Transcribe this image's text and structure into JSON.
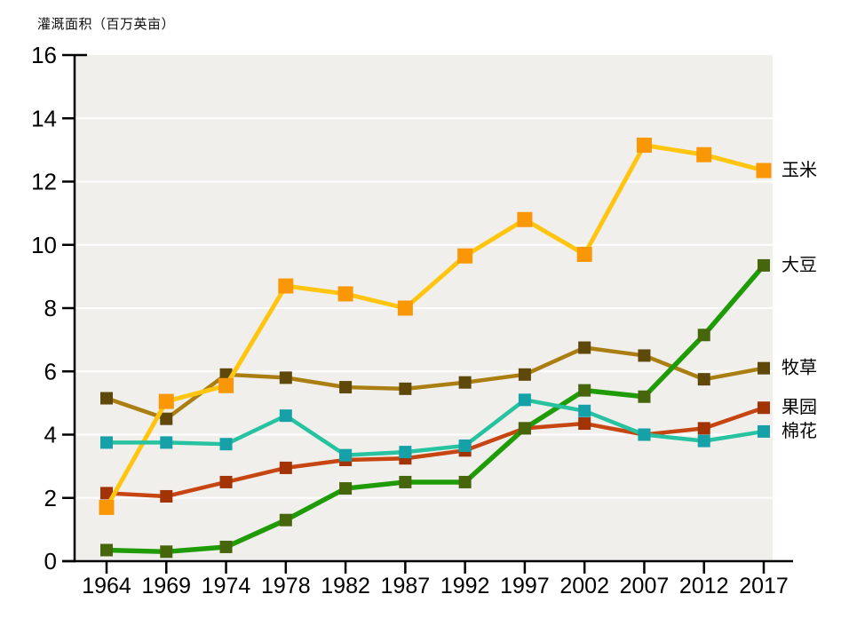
{
  "chart_data": {
    "type": "line",
    "title": "灌溉面积（百万英亩）",
    "xlabel": "",
    "ylabel": "灌溉面积（百万英亩）",
    "x": [
      1964,
      1969,
      1974,
      1978,
      1982,
      1987,
      1992,
      1997,
      2002,
      2007,
      2012,
      2017
    ],
    "ylim": [
      0,
      16
    ],
    "y_ticks": [
      0,
      2,
      4,
      6,
      8,
      10,
      12,
      14,
      16
    ],
    "grid": "horizontal-white-lines-on-gray-panel",
    "panel_color": "#f0efec",
    "gridline_color": "#ffffff",
    "axis_color": "#000000",
    "legend_position": "right-of-line-ends",
    "series": [
      {
        "key": "hay",
        "name": "牧草",
        "line_color": "#ab7e12",
        "marker_color": "#5e490b",
        "values": [
          5.15,
          4.5,
          5.9,
          5.8,
          5.5,
          5.45,
          5.65,
          5.9,
          6.75,
          6.5,
          5.75,
          6.1
        ]
      },
      {
        "key": "orchard",
        "name": "果园",
        "line_color": "#c64511",
        "marker_color": "#a23305",
        "values": [
          2.15,
          2.05,
          2.5,
          2.95,
          3.2,
          3.25,
          3.5,
          4.2,
          4.35,
          4.0,
          4.2,
          4.85
        ]
      },
      {
        "key": "corn",
        "name": "玉米",
        "line_color": "#ffc511",
        "marker_color": "#f99706",
        "values": [
          1.7,
          5.05,
          5.55,
          8.7,
          8.45,
          8.0,
          9.65,
          10.8,
          9.7,
          13.15,
          12.85,
          12.35
        ]
      },
      {
        "key": "soybeans",
        "name": "大豆",
        "line_color": "#1e9b05",
        "marker_color": "#47660c",
        "values": [
          0.35,
          0.3,
          0.45,
          1.3,
          2.3,
          2.5,
          2.5,
          4.2,
          5.4,
          5.2,
          7.15,
          9.35
        ]
      },
      {
        "key": "cotton",
        "name": "棉花",
        "line_color": "#27c2a0",
        "marker_color": "#16a1a9",
        "values": [
          3.75,
          3.75,
          3.7,
          4.6,
          3.35,
          3.45,
          3.65,
          5.1,
          4.75,
          4.0,
          3.8,
          4.1
        ]
      }
    ]
  }
}
